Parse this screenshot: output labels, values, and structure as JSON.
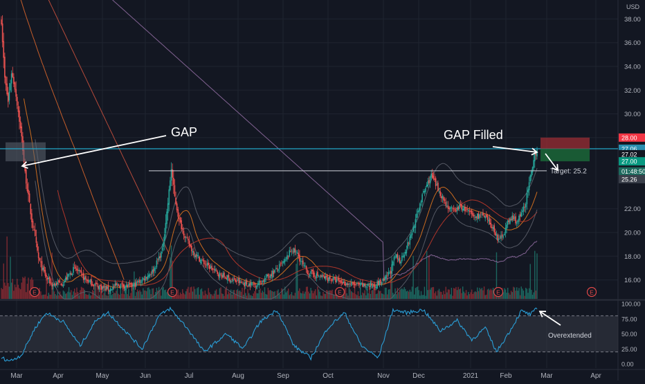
{
  "chart_data": [
    {
      "type": "candlestick",
      "panel": "price",
      "currency_label": "USD",
      "x_months": [
        "Mar",
        "Apr",
        "May",
        "Jun",
        "Jul",
        "Aug",
        "Sep",
        "Oct",
        "Nov",
        "Dec",
        "2021",
        "Feb",
        "Mar",
        "Apr"
      ],
      "y_ticks": [
        "38.00",
        "36.00",
        "34.00",
        "32.00",
        "30.00",
        "28.00",
        "22.00",
        "20.00",
        "18.00",
        "16.00"
      ],
      "ylim": [
        14.4,
        39.6
      ],
      "price_series": [
        {
          "i": 0,
          "v": 37.8
        },
        {
          "i": 3,
          "v": 33.0
        },
        {
          "i": 6,
          "v": 31.0
        },
        {
          "i": 9,
          "v": 33.5
        },
        {
          "i": 12,
          "v": 32.2
        },
        {
          "i": 15,
          "v": 30.2
        },
        {
          "i": 18,
          "v": 28.0
        },
        {
          "i": 21,
          "v": 25.0
        },
        {
          "i": 24,
          "v": 23.0
        },
        {
          "i": 27,
          "v": 21.0
        },
        {
          "i": 30,
          "v": 19.5
        },
        {
          "i": 33,
          "v": 17.8
        },
        {
          "i": 36,
          "v": 17.0
        },
        {
          "i": 40,
          "v": 16.2
        },
        {
          "i": 45,
          "v": 15.6
        },
        {
          "i": 55,
          "v": 15.8
        },
        {
          "i": 65,
          "v": 17.0
        },
        {
          "i": 75,
          "v": 16.0
        },
        {
          "i": 85,
          "v": 15.5
        },
        {
          "i": 95,
          "v": 15.2
        },
        {
          "i": 105,
          "v": 15.6
        },
        {
          "i": 115,
          "v": 15.4
        },
        {
          "i": 125,
          "v": 16.0
        },
        {
          "i": 135,
          "v": 16.8
        },
        {
          "i": 143,
          "v": 18.5
        },
        {
          "i": 148,
          "v": 22.5
        },
        {
          "i": 151,
          "v": 25.4
        },
        {
          "i": 154,
          "v": 23.0
        },
        {
          "i": 158,
          "v": 21.0
        },
        {
          "i": 164,
          "v": 19.5
        },
        {
          "i": 170,
          "v": 18.4
        },
        {
          "i": 178,
          "v": 17.6
        },
        {
          "i": 186,
          "v": 17.0
        },
        {
          "i": 195,
          "v": 16.4
        },
        {
          "i": 205,
          "v": 16.0
        },
        {
          "i": 215,
          "v": 15.7
        },
        {
          "i": 225,
          "v": 15.6
        },
        {
          "i": 232,
          "v": 15.9
        },
        {
          "i": 238,
          "v": 16.4
        },
        {
          "i": 245,
          "v": 16.9
        },
        {
          "i": 252,
          "v": 17.6
        },
        {
          "i": 258,
          "v": 18.6
        },
        {
          "i": 263,
          "v": 18.2
        },
        {
          "i": 268,
          "v": 17.2
        },
        {
          "i": 273,
          "v": 16.6
        },
        {
          "i": 282,
          "v": 16.3
        },
        {
          "i": 292,
          "v": 16.1
        },
        {
          "i": 302,
          "v": 15.8
        },
        {
          "i": 312,
          "v": 15.6
        },
        {
          "i": 322,
          "v": 15.5
        },
        {
          "i": 332,
          "v": 15.6
        },
        {
          "i": 340,
          "v": 15.9
        },
        {
          "i": 346,
          "v": 16.8
        },
        {
          "i": 350,
          "v": 18.0
        },
        {
          "i": 354,
          "v": 17.6
        },
        {
          "i": 358,
          "v": 18.3
        },
        {
          "i": 362,
          "v": 19.2
        },
        {
          "i": 368,
          "v": 21.0
        },
        {
          "i": 373,
          "v": 22.8
        },
        {
          "i": 378,
          "v": 24.0
        },
        {
          "i": 382,
          "v": 24.8
        },
        {
          "i": 386,
          "v": 24.0
        },
        {
          "i": 390,
          "v": 23.3
        },
        {
          "i": 394,
          "v": 22.6
        },
        {
          "i": 398,
          "v": 22.0
        },
        {
          "i": 402,
          "v": 21.8
        },
        {
          "i": 408,
          "v": 22.2
        },
        {
          "i": 414,
          "v": 21.8
        },
        {
          "i": 420,
          "v": 21.3
        },
        {
          "i": 426,
          "v": 21.5
        },
        {
          "i": 432,
          "v": 21.0
        },
        {
          "i": 438,
          "v": 20.2
        },
        {
          "i": 442,
          "v": 19.3
        },
        {
          "i": 446,
          "v": 19.9
        },
        {
          "i": 450,
          "v": 20.8
        },
        {
          "i": 454,
          "v": 21.3
        },
        {
          "i": 458,
          "v": 20.9
        },
        {
          "i": 462,
          "v": 21.5
        },
        {
          "i": 466,
          "v": 22.6
        },
        {
          "i": 468,
          "v": 23.6
        },
        {
          "i": 470,
          "v": 24.6
        },
        {
          "i": 472,
          "v": 25.3
        },
        {
          "i": 474,
          "v": 26.5
        },
        {
          "i": 476,
          "v": 27.0
        }
      ],
      "price_labels": [
        {
          "text": "28.00",
          "v": 28.0,
          "color": "#f23645"
        },
        {
          "text": "27.06",
          "v": 27.06,
          "color": "#2a8fb0"
        },
        {
          "text": "27.02",
          "v": 26.6,
          "color": "#131722"
        },
        {
          "text": "27.00",
          "v": 26.0,
          "color": "#089981"
        },
        {
          "text": "01:48:50",
          "v": 25.15,
          "color": "#1c6a5e"
        },
        {
          "text": "25.26",
          "v": 24.5,
          "color": "#3a3f4a"
        }
      ],
      "gap_level": 27.06,
      "target_level": 25.2,
      "target_label": "Target: 25.2",
      "long_position": {
        "stop": 28.0,
        "entry": 27.06,
        "target": 26.0
      },
      "gap_box": {
        "top": 27.6,
        "bottom": 26.0
      },
      "annotations": [
        "GAP",
        "GAP Filled"
      ],
      "earnings_marker": "E"
    },
    {
      "type": "line",
      "panel": "oscillator",
      "y_ticks": [
        "100.00",
        "75.00",
        "50.00",
        "25.00",
        "0.00"
      ],
      "ylim": [
        0,
        100
      ],
      "band": [
        20,
        80
      ],
      "values": [
        {
          "i": 0,
          "v": 10
        },
        {
          "i": 8,
          "v": 5
        },
        {
          "i": 18,
          "v": 15
        },
        {
          "i": 30,
          "v": 60
        },
        {
          "i": 40,
          "v": 85
        },
        {
          "i": 55,
          "v": 70
        },
        {
          "i": 70,
          "v": 30
        },
        {
          "i": 85,
          "v": 75
        },
        {
          "i": 95,
          "v": 85
        },
        {
          "i": 110,
          "v": 55
        },
        {
          "i": 125,
          "v": 25
        },
        {
          "i": 140,
          "v": 80
        },
        {
          "i": 150,
          "v": 92
        },
        {
          "i": 165,
          "v": 60
        },
        {
          "i": 180,
          "v": 20
        },
        {
          "i": 200,
          "v": 50
        },
        {
          "i": 215,
          "v": 25
        },
        {
          "i": 230,
          "v": 70
        },
        {
          "i": 245,
          "v": 90
        },
        {
          "i": 260,
          "v": 30
        },
        {
          "i": 275,
          "v": 10
        },
        {
          "i": 290,
          "v": 60
        },
        {
          "i": 305,
          "v": 85
        },
        {
          "i": 320,
          "v": 30
        },
        {
          "i": 335,
          "v": 10
        },
        {
          "i": 348,
          "v": 90
        },
        {
          "i": 360,
          "v": 85
        },
        {
          "i": 375,
          "v": 90
        },
        {
          "i": 390,
          "v": 55
        },
        {
          "i": 405,
          "v": 72
        },
        {
          "i": 418,
          "v": 40
        },
        {
          "i": 430,
          "v": 60
        },
        {
          "i": 440,
          "v": 20
        },
        {
          "i": 452,
          "v": 55
        },
        {
          "i": 462,
          "v": 88
        },
        {
          "i": 470,
          "v": 82
        },
        {
          "i": 476,
          "v": 92
        }
      ],
      "annotation": "Overextended"
    }
  ]
}
